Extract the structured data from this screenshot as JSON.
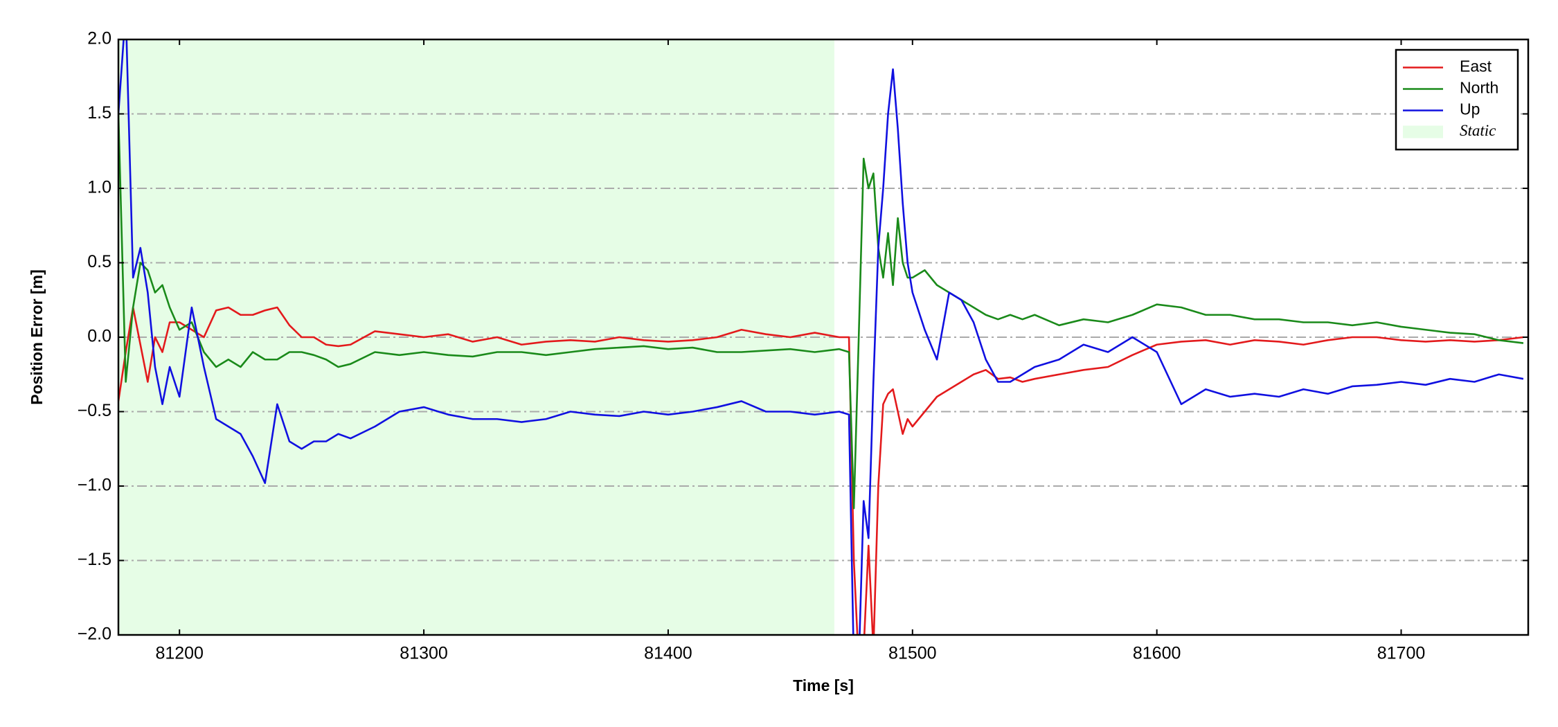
{
  "chart_data": {
    "type": "line",
    "xlabel": "Time [s]",
    "ylabel": "Position Error [m]",
    "xlim": [
      81175,
      81752
    ],
    "ylim": [
      -2,
      2
    ],
    "xticks": [
      81200,
      81300,
      81400,
      81500,
      81600,
      81700
    ],
    "yticks": [
      {
        "value": -2,
        "label": "−2.0"
      },
      {
        "value": -1.5,
        "label": "−1.5"
      },
      {
        "value": -1,
        "label": "−1.0"
      },
      {
        "value": -0.5,
        "label": "−0.5"
      },
      {
        "value": 0,
        "label": "0.0"
      },
      {
        "value": 0.5,
        "label": "0.5"
      },
      {
        "value": 1,
        "label": "1.0"
      },
      {
        "value": 1.5,
        "label": "1.5"
      },
      {
        "value": 2,
        "label": "2.0"
      }
    ],
    "grid": true,
    "legend": "upper right",
    "span": {
      "name": "Static",
      "range": [
        81175,
        81468
      ],
      "color": "#e6fde6"
    },
    "x": [
      81175,
      81178,
      81181,
      81184,
      81187,
      81190,
      81193,
      81196,
      81200,
      81205,
      81210,
      81215,
      81220,
      81225,
      81230,
      81235,
      81240,
      81245,
      81250,
      81255,
      81260,
      81265,
      81270,
      81280,
      81290,
      81300,
      81310,
      81320,
      81330,
      81340,
      81350,
      81360,
      81370,
      81380,
      81390,
      81400,
      81410,
      81420,
      81430,
      81440,
      81450,
      81460,
      81470,
      81474,
      81476,
      81478,
      81480,
      81482,
      81484,
      81486,
      81488,
      81490,
      81492,
      81494,
      81496,
      81498,
      81500,
      81505,
      81510,
      81515,
      81520,
      81525,
      81530,
      81535,
      81540,
      81545,
      81550,
      81560,
      81570,
      81580,
      81590,
      81600,
      81610,
      81620,
      81630,
      81640,
      81650,
      81660,
      81670,
      81680,
      81690,
      81700,
      81710,
      81720,
      81730,
      81740,
      81750
    ],
    "series": [
      {
        "name": "East",
        "color": "#e31a1c",
        "values": [
          -0.43,
          -0.1,
          0.2,
          -0.05,
          -0.3,
          0.0,
          -0.1,
          0.1,
          0.1,
          0.05,
          0.0,
          0.18,
          0.2,
          0.15,
          0.15,
          0.18,
          0.2,
          0.08,
          0.0,
          0.0,
          -0.05,
          -0.06,
          -0.05,
          0.04,
          0.02,
          0.0,
          0.02,
          -0.03,
          0.0,
          -0.05,
          -0.03,
          -0.02,
          -0.03,
          0.0,
          -0.02,
          -0.03,
          -0.02,
          0.0,
          0.05,
          0.02,
          0.0,
          0.03,
          0.0,
          0.0,
          -1.5,
          -2.2,
          -2.1,
          -1.4,
          -2.1,
          -1.0,
          -0.45,
          -0.38,
          -0.35,
          -0.5,
          -0.65,
          -0.55,
          -0.6,
          -0.5,
          -0.4,
          -0.35,
          -0.3,
          -0.25,
          -0.22,
          -0.28,
          -0.27,
          -0.3,
          -0.28,
          -0.25,
          -0.22,
          -0.2,
          -0.12,
          -0.05,
          -0.03,
          -0.02,
          -0.05,
          -0.02,
          -0.03,
          -0.05,
          -0.02,
          0.0,
          0.0,
          -0.02,
          -0.03,
          -0.02,
          -0.03,
          -0.02,
          0.0
        ]
      },
      {
        "name": "North",
        "color": "#1a8a1a",
        "values": [
          1.5,
          -0.3,
          0.2,
          0.5,
          0.45,
          0.3,
          0.35,
          0.2,
          0.05,
          0.1,
          -0.1,
          -0.2,
          -0.15,
          -0.2,
          -0.1,
          -0.15,
          -0.15,
          -0.1,
          -0.1,
          -0.12,
          -0.15,
          -0.2,
          -0.18,
          -0.1,
          -0.12,
          -0.1,
          -0.12,
          -0.13,
          -0.1,
          -0.1,
          -0.12,
          -0.1,
          -0.08,
          -0.07,
          -0.06,
          -0.08,
          -0.07,
          -0.1,
          -0.1,
          -0.09,
          -0.08,
          -0.1,
          -0.08,
          -0.1,
          -1.15,
          0.0,
          1.2,
          1.0,
          1.1,
          0.6,
          0.4,
          0.7,
          0.35,
          0.8,
          0.5,
          0.4,
          0.4,
          0.45,
          0.35,
          0.3,
          0.25,
          0.2,
          0.15,
          0.12,
          0.15,
          0.12,
          0.15,
          0.08,
          0.12,
          0.1,
          0.15,
          0.22,
          0.2,
          0.15,
          0.15,
          0.12,
          0.12,
          0.1,
          0.1,
          0.08,
          0.1,
          0.07,
          0.05,
          0.03,
          0.02,
          -0.02,
          -0.04
        ]
      },
      {
        "name": "Up",
        "color": "#1010e0",
        "values": [
          1.5,
          2.2,
          0.4,
          0.6,
          0.3,
          -0.2,
          -0.45,
          -0.2,
          -0.4,
          0.2,
          -0.2,
          -0.55,
          -0.6,
          -0.65,
          -0.8,
          -0.98,
          -0.45,
          -0.7,
          -0.75,
          -0.7,
          -0.7,
          -0.65,
          -0.68,
          -0.6,
          -0.5,
          -0.47,
          -0.52,
          -0.55,
          -0.55,
          -0.57,
          -0.55,
          -0.5,
          -0.52,
          -0.53,
          -0.5,
          -0.52,
          -0.5,
          -0.47,
          -0.43,
          -0.5,
          -0.5,
          -0.52,
          -0.5,
          -0.52,
          -2.2,
          -2.2,
          -1.1,
          -1.35,
          -0.3,
          0.6,
          1.0,
          1.5,
          1.8,
          1.4,
          0.9,
          0.5,
          0.3,
          0.05,
          -0.15,
          0.3,
          0.25,
          0.1,
          -0.15,
          -0.3,
          -0.3,
          -0.25,
          -0.2,
          -0.15,
          -0.05,
          -0.1,
          0.0,
          -0.1,
          -0.45,
          -0.35,
          -0.4,
          -0.38,
          -0.4,
          -0.35,
          -0.38,
          -0.33,
          -0.32,
          -0.3,
          -0.32,
          -0.28,
          -0.3,
          -0.25,
          -0.28
        ]
      }
    ]
  }
}
